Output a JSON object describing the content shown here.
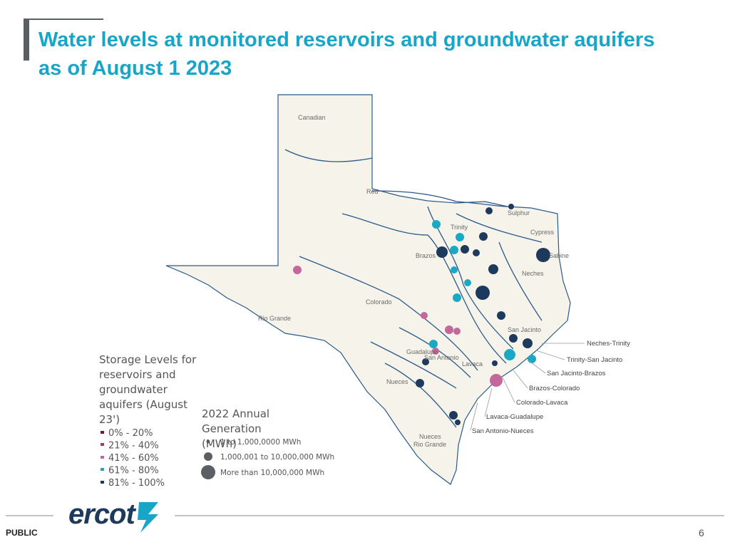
{
  "title": "Water levels at monitored reservoirs and groundwater aquifers as of August 1 2023",
  "map": {
    "basin_labels": [
      "Canadian",
      "Red",
      "Sulphur",
      "Trinity",
      "Cypress",
      "Brazos",
      "Sabine",
      "Neches",
      "Colorado",
      "Rio Grande",
      "San Jacinto",
      "Lavaca",
      "Guadalupe",
      "San Antonio",
      "Nueces",
      "Nueces",
      "Rio Grande"
    ],
    "callouts": [
      "Neches-Trinity",
      "Trinity-San Jacinto",
      "San Jacinto-Brazos",
      "Brazos-Colorado",
      "Colorado-Lavaca",
      "Lavaca-Guadalupe",
      "San Antonio-Nueces"
    ]
  },
  "legend": {
    "storage_title": "Storage Levels for reservoirs and groundwater aquifers (August 23')",
    "storage_levels": [
      "0% - 20%",
      "21% - 40%",
      "41% - 60%",
      "61% - 80%",
      "81% - 100%"
    ],
    "generation_title": "2022 Annual Generation (MWh)",
    "generation_sizes": [
      "1 to 1,000,0000 MWh",
      "1,000,001 to 10,000,000 MWh",
      "More than 10,000,000 MWh"
    ]
  },
  "footer": {
    "logo": "ercot",
    "classification": "PUBLIC",
    "page": "6"
  }
}
